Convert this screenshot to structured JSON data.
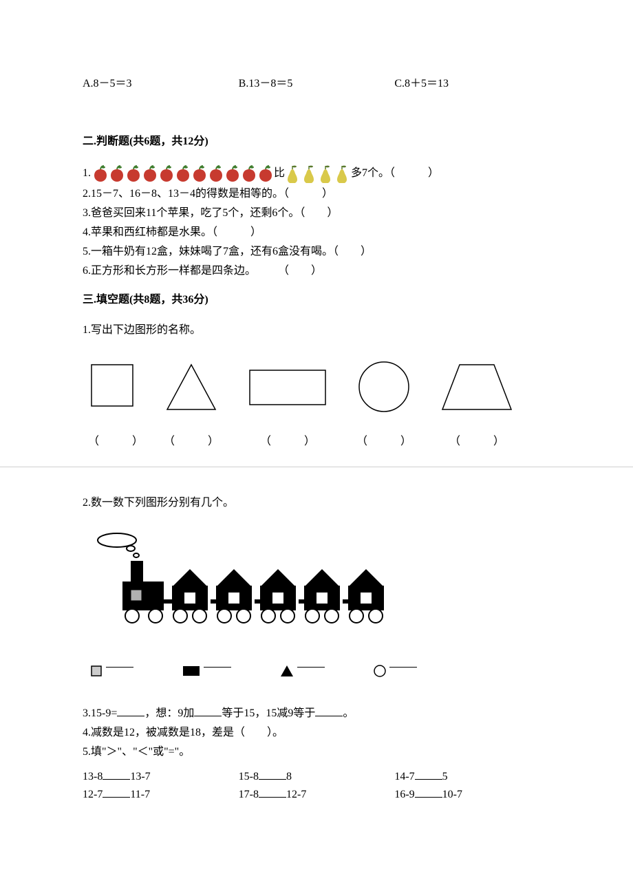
{
  "colors": {
    "text": "#000000",
    "background": "#ffffff",
    "apple_red": "#c73a2f",
    "apple_leaf": "#3f7d2e",
    "pear_yellow": "#d9c94a",
    "pear_leaf": "#5a7a2e",
    "shape_stroke": "#000000",
    "divider": "#d0d0d0",
    "train_black": "#000000",
    "train_gray": "#b0b0b0"
  },
  "typography": {
    "base_fontsize_pt": 12,
    "bold_weight": 700
  },
  "q1_options": {
    "a": "A.8－5＝3",
    "b": "B.13－8＝5",
    "c": "C.8＋5＝13"
  },
  "section2": {
    "title": "二.判断题(共6题，共12分)",
    "q1": {
      "prefix": "1.",
      "apple_count": 11,
      "mid": "比",
      "pear_count": 4,
      "suffix": "多7个。（　　　）"
    },
    "q2": "2.15－7、16－8、13－4的得数是相等的。（　　　）",
    "q3": "3.爸爸买回来11个苹果，吃了5个，还剩6个。（　　）",
    "q4": "4.苹果和西红柿都是水果。（　　　）",
    "q5": "5.一箱牛奶有12盒，妹妹喝了7盒，还有6盒没有喝。（　　）",
    "q6": "6.正方形和长方形一样都是四条边。　　　（　　）"
  },
  "section3": {
    "title": "三.填空题(共8题，共36分)",
    "q1_text": "1.写出下边图形的名称。",
    "shapes": [
      {
        "type": "square",
        "w": 70,
        "label": "（　　　）"
      },
      {
        "type": "triangle",
        "w": 80,
        "label": "（　　　）"
      },
      {
        "type": "rectangle",
        "w": 120,
        "label": "（　　　）"
      },
      {
        "type": "circle",
        "w": 80,
        "label": "（　　　）"
      },
      {
        "type": "trapezoid",
        "w": 110,
        "label": "（　　　）"
      }
    ],
    "q2_text": "2.数一数下列图形分别有几个。",
    "train": {
      "cars": 5,
      "wheel_count": 10
    },
    "count_items": [
      {
        "icon": "small-square-outline"
      },
      {
        "icon": "small-square-filled"
      },
      {
        "icon": "small-triangle-filled"
      },
      {
        "icon": "small-circle-outline"
      }
    ],
    "q3_text_parts": [
      "3.15-9=",
      "，想：9加",
      "等于15，15减9等于",
      "。"
    ],
    "q4_text": "4.减数是12，被减数是18，差是（　　）。",
    "q5_text": "5.填\"＞\"、\"＜\"或\"=\"。",
    "compare": {
      "col1": [
        "13-8",
        "13-7",
        "12-7",
        "11-7"
      ],
      "col2": [
        "15-8",
        "8",
        "17-8",
        "12-7"
      ],
      "col3": [
        "14-7",
        "5",
        "16-9",
        "10-7"
      ]
    }
  }
}
